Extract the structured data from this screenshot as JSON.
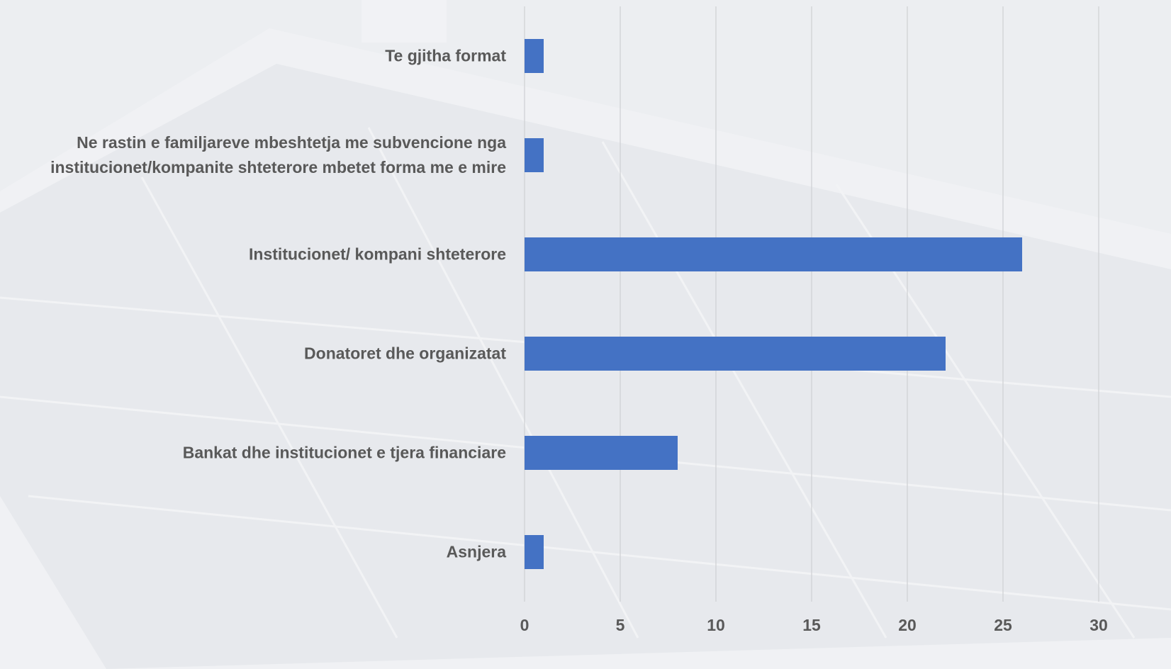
{
  "chart_data": {
    "type": "barh",
    "categories": [
      "Te gjitha format",
      "Ne rastin e familjareve mbeshtetja me subvencione nga institucionet/kompanite shteterore mbetet forma me e mire",
      "Institucionet/ kompani shteterore",
      "Donatoret dhe organizatat",
      "Bankat dhe institucionet e tjera financiare",
      "Asnjera"
    ],
    "values": [
      1,
      1,
      26,
      22,
      8,
      1
    ],
    "color": "#4472c4",
    "xlim": [
      0,
      30
    ],
    "xticks": [
      0,
      5,
      10,
      15,
      20,
      25,
      30
    ],
    "grid": true
  }
}
